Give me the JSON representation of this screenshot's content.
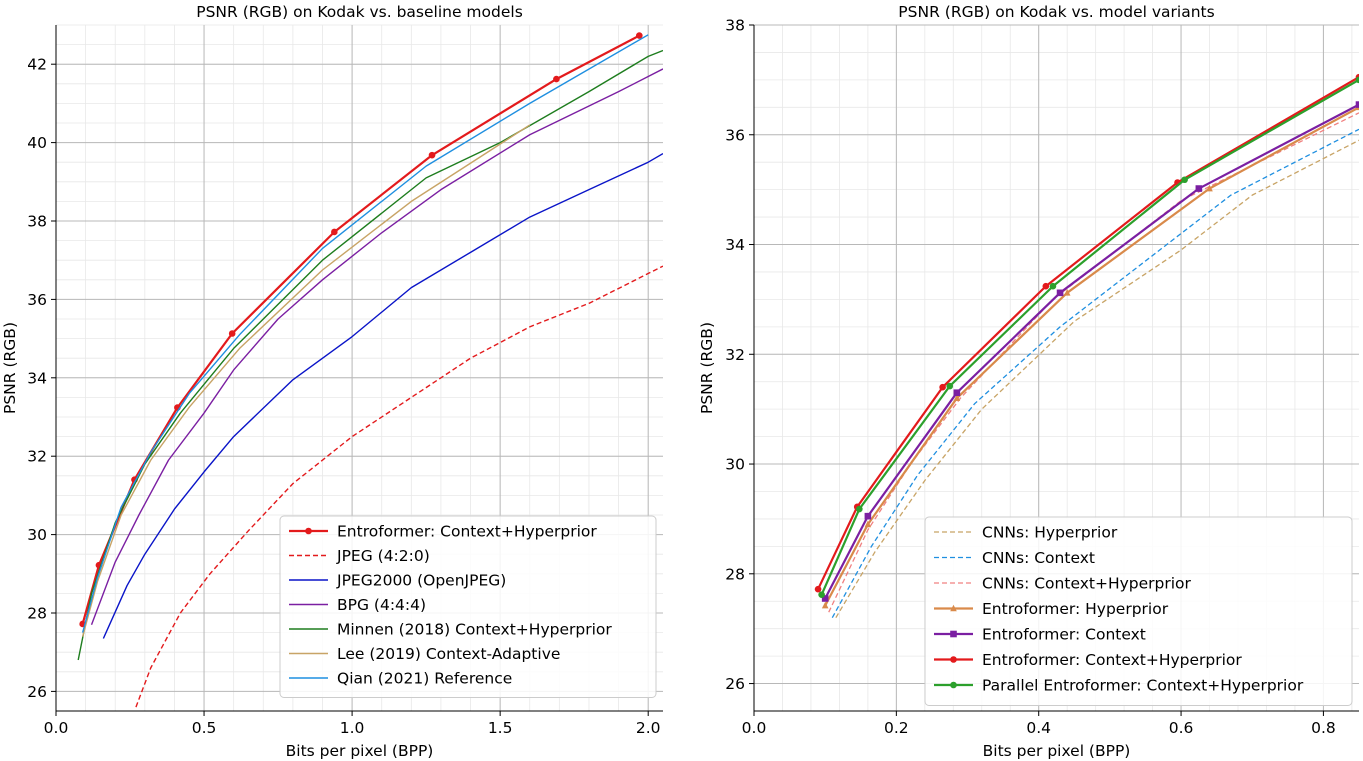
{
  "chart_data": [
    {
      "type": "line",
      "title": "PSNR (RGB) on Kodak vs. baseline models",
      "xlabel": "Bits per pixel (BPP)",
      "ylabel": "PSNR (RGB)",
      "xlim": [
        0.0,
        2.05
      ],
      "ylim": [
        25.5,
        43.0
      ],
      "xticks": [
        0.0,
        0.5,
        1.0,
        1.5,
        2.0
      ],
      "xtick_labels": [
        "0.0",
        "0.5",
        "1.0",
        "1.5",
        "2.0"
      ],
      "yticks": [
        26,
        28,
        30,
        32,
        34,
        36,
        38,
        40,
        42
      ],
      "ytick_labels": [
        "26",
        "28",
        "30",
        "32",
        "34",
        "36",
        "38",
        "40",
        "42"
      ],
      "grid": true,
      "minor_grid": true,
      "legend_position": "lower-right",
      "series": [
        {
          "name": "Entroformer: Context+Hyperprior",
          "color": "#e31a1c",
          "dash": "solid",
          "marker": "circle",
          "width": 2.2,
          "points": [
            [
              0.09,
              27.72
            ],
            [
              0.145,
              29.22
            ],
            [
              0.265,
              31.4
            ],
            [
              0.41,
              33.24
            ],
            [
              0.595,
              35.13
            ],
            [
              0.94,
              37.72
            ],
            [
              1.27,
              39.68
            ],
            [
              1.69,
              41.62
            ],
            [
              1.97,
              42.73
            ]
          ]
        },
        {
          "name": "JPEG (4:2:0)",
          "color": "#e31a1c",
          "dash": "dashed",
          "marker": "none",
          "width": 1.4,
          "points": [
            [
              0.27,
              25.6
            ],
            [
              0.32,
              26.6
            ],
            [
              0.42,
              28.0
            ],
            [
              0.52,
              29.0
            ],
            [
              0.65,
              30.1
            ],
            [
              0.8,
              31.3
            ],
            [
              1.0,
              32.5
            ],
            [
              1.2,
              33.5
            ],
            [
              1.4,
              34.5
            ],
            [
              1.6,
              35.3
            ],
            [
              1.8,
              35.9
            ],
            [
              2.05,
              36.85
            ]
          ]
        },
        {
          "name": "JPEG2000 (OpenJPEG)",
          "color": "#0a14c8",
          "dash": "solid",
          "marker": "none",
          "width": 1.4,
          "points": [
            [
              0.16,
              27.35
            ],
            [
              0.24,
              28.7
            ],
            [
              0.3,
              29.5
            ],
            [
              0.4,
              30.65
            ],
            [
              0.5,
              31.6
            ],
            [
              0.6,
              32.5
            ],
            [
              0.8,
              33.95
            ],
            [
              1.0,
              35.05
            ],
            [
              1.2,
              36.3
            ],
            [
              1.4,
              37.2
            ],
            [
              1.6,
              38.1
            ],
            [
              1.8,
              38.8
            ],
            [
              2.0,
              39.5
            ],
            [
              2.05,
              39.72
            ]
          ]
        },
        {
          "name": "BPG (4:4:4)",
          "color": "#7b1fa2",
          "dash": "solid",
          "marker": "none",
          "width": 1.4,
          "points": [
            [
              0.12,
              27.7
            ],
            [
              0.2,
              29.3
            ],
            [
              0.28,
              30.5
            ],
            [
              0.38,
              31.9
            ],
            [
              0.5,
              33.1
            ],
            [
              0.6,
              34.2
            ],
            [
              0.75,
              35.5
            ],
            [
              0.9,
              36.5
            ],
            [
              1.1,
              37.7
            ],
            [
              1.3,
              38.8
            ],
            [
              1.6,
              40.2
            ],
            [
              1.9,
              41.3
            ],
            [
              2.05,
              41.88
            ]
          ]
        },
        {
          "name": "Minnen (2018) Context+Hyperprior",
          "color": "#1e7d1e",
          "dash": "solid",
          "marker": "none",
          "width": 1.4,
          "points": [
            [
              0.075,
              26.8
            ],
            [
              0.12,
              28.5
            ],
            [
              0.2,
              30.3
            ],
            [
              0.3,
              31.8
            ],
            [
              0.42,
              33.1
            ],
            [
              0.6,
              34.75
            ],
            [
              0.9,
              37.0
            ],
            [
              1.25,
              39.1
            ],
            [
              1.5,
              40.0
            ],
            [
              1.8,
              41.3
            ],
            [
              2.0,
              42.2
            ],
            [
              2.05,
              42.35
            ]
          ]
        },
        {
          "name": "Lee (2019) Context-Adaptive",
          "color": "#c8a466",
          "dash": "solid",
          "marker": "none",
          "width": 1.4,
          "points": [
            [
              0.09,
              27.4
            ],
            [
              0.14,
              28.8
            ],
            [
              0.22,
              30.5
            ],
            [
              0.32,
              31.9
            ],
            [
              0.45,
              33.25
            ],
            [
              0.62,
              34.75
            ],
            [
              0.9,
              36.75
            ],
            [
              1.2,
              38.5
            ],
            [
              1.6,
              40.45
            ]
          ]
        },
        {
          "name": "Qian (2021) Reference",
          "color": "#1f8fe0",
          "dash": "solid",
          "marker": "none",
          "width": 1.4,
          "points": [
            [
              0.09,
              27.5
            ],
            [
              0.14,
              28.9
            ],
            [
              0.22,
              30.7
            ],
            [
              0.32,
              32.1
            ],
            [
              0.45,
              33.6
            ],
            [
              0.62,
              35.1
            ],
            [
              0.9,
              37.3
            ],
            [
              1.25,
              39.4
            ],
            [
              1.6,
              41.0
            ],
            [
              2.0,
              42.75
            ]
          ]
        }
      ]
    },
    {
      "type": "line",
      "title": "PSNR (RGB) on Kodak vs. model variants",
      "xlabel": "Bits per pixel (BPP)",
      "ylabel": "PSNR (RGB)",
      "xlim": [
        0.0,
        0.85
      ],
      "ylim": [
        25.5,
        38.0
      ],
      "xticks": [
        0.0,
        0.2,
        0.4,
        0.6,
        0.8
      ],
      "xtick_labels": [
        "0.0",
        "0.2",
        "0.4",
        "0.6",
        "0.8"
      ],
      "yticks": [
        26,
        28,
        30,
        32,
        34,
        36,
        38
      ],
      "ytick_labels": [
        "26",
        "28",
        "30",
        "32",
        "34",
        "36",
        "38"
      ],
      "grid": true,
      "minor_grid": true,
      "legend_position": "lower-right",
      "series": [
        {
          "name": "CNNs: Hyperprior",
          "color": "#c8a466",
          "dash": "dashed",
          "marker": "none",
          "width": 1.3,
          "points": [
            [
              0.115,
              27.2
            ],
            [
              0.17,
              28.4
            ],
            [
              0.24,
              29.7
            ],
            [
              0.32,
              31.0
            ],
            [
              0.45,
              32.6
            ],
            [
              0.6,
              33.9
            ],
            [
              0.7,
              34.9
            ],
            [
              0.85,
              35.9
            ]
          ]
        },
        {
          "name": "CNNs: Context",
          "color": "#1f8fe0",
          "dash": "dashed",
          "marker": "none",
          "width": 1.3,
          "points": [
            [
              0.11,
              27.2
            ],
            [
              0.165,
              28.5
            ],
            [
              0.23,
              29.8
            ],
            [
              0.31,
              31.1
            ],
            [
              0.43,
              32.5
            ],
            [
              0.57,
              33.9
            ],
            [
              0.67,
              34.9
            ],
            [
              0.85,
              36.1
            ]
          ]
        },
        {
          "name": "CNNs: Context+Hyperprior",
          "color": "#f08080",
          "dash": "dashed",
          "marker": "none",
          "width": 1.3,
          "points": [
            [
              0.105,
              27.3
            ],
            [
              0.16,
              28.8
            ],
            [
              0.22,
              30.0
            ],
            [
              0.29,
              31.2
            ],
            [
              0.42,
              33.0
            ],
            [
              0.6,
              34.8
            ],
            [
              0.85,
              36.4
            ]
          ]
        },
        {
          "name": "Entroformer: Hyperprior",
          "color": "#d98a4a",
          "dash": "solid",
          "marker": "triangle",
          "width": 2.2,
          "points": [
            [
              0.1,
              27.42
            ],
            [
              0.16,
              28.9
            ],
            [
              0.285,
              31.2
            ],
            [
              0.44,
              33.12
            ],
            [
              0.64,
              35.02
            ],
            [
              0.85,
              36.5
            ]
          ]
        },
        {
          "name": "Entroformer: Context",
          "color": "#7b1fa2",
          "dash": "solid",
          "marker": "square",
          "width": 2.2,
          "points": [
            [
              0.1,
              27.55
            ],
            [
              0.16,
              29.05
            ],
            [
              0.285,
              31.3
            ],
            [
              0.43,
              33.12
            ],
            [
              0.625,
              35.02
            ],
            [
              0.85,
              36.55
            ]
          ]
        },
        {
          "name": "Entroformer: Context+Hyperprior",
          "color": "#e31a1c",
          "dash": "solid",
          "marker": "circle",
          "width": 2.2,
          "points": [
            [
              0.09,
              27.72
            ],
            [
              0.145,
              29.22
            ],
            [
              0.265,
              31.4
            ],
            [
              0.41,
              33.24
            ],
            [
              0.595,
              35.13
            ],
            [
              0.85,
              37.05
            ]
          ]
        },
        {
          "name": "Parallel Entroformer: Context+Hyperprior",
          "color": "#2ca02c",
          "dash": "solid",
          "marker": "circle",
          "width": 2.2,
          "points": [
            [
              0.095,
              27.62
            ],
            [
              0.148,
              29.18
            ],
            [
              0.275,
              31.42
            ],
            [
              0.42,
              33.24
            ],
            [
              0.605,
              35.18
            ],
            [
              0.85,
              37.0
            ]
          ]
        }
      ]
    }
  ]
}
